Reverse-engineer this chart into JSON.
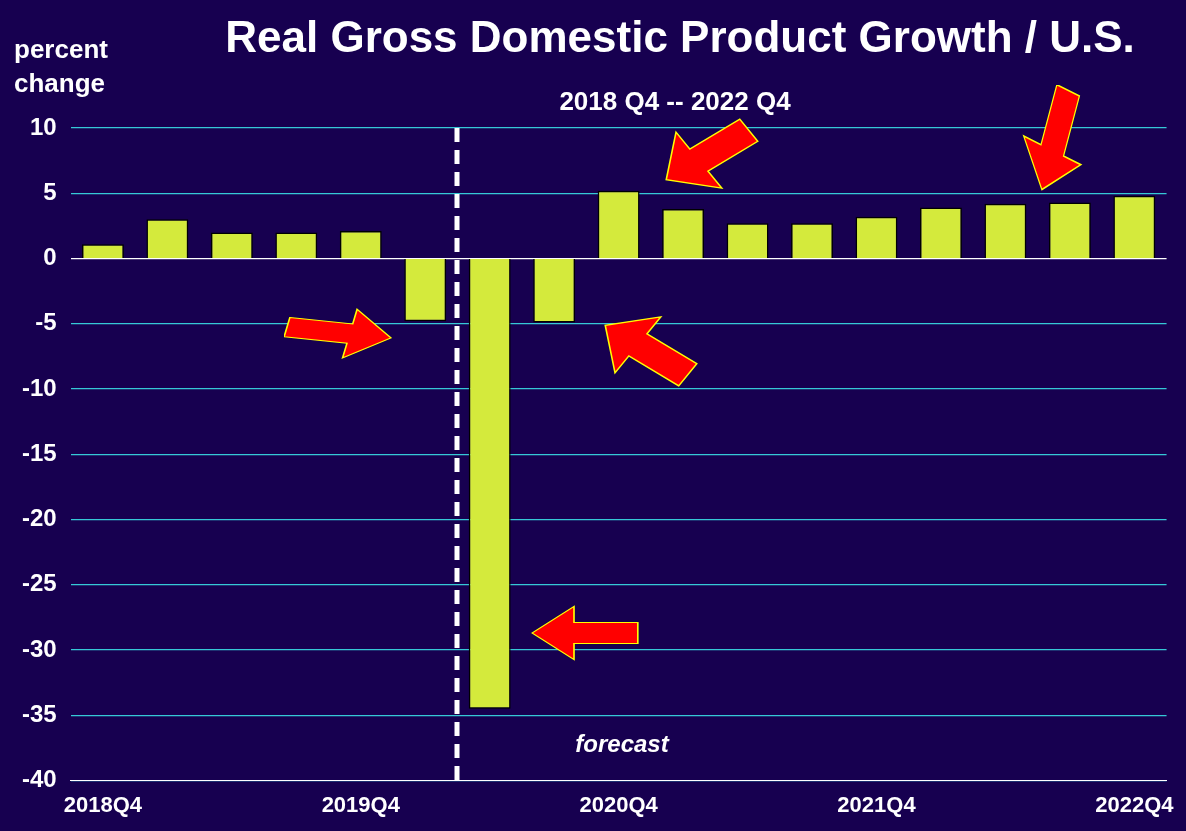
{
  "chart_data": {
    "type": "bar",
    "title": "Real Gross Domestic Product Growth / U.S.",
    "subtitle": "2018 Q4 -- 2022 Q4",
    "ylabel": "percent change",
    "categories": [
      "2018Q4",
      null,
      null,
      null,
      "2019Q4",
      null,
      null,
      null,
      "2020Q4",
      null,
      null,
      null,
      "2021Q4",
      null,
      null,
      null,
      "2022Q4"
    ],
    "values": [
      1.1,
      3.0,
      2.0,
      2.0,
      2.1,
      -4.8,
      -34.5,
      -4.9,
      5.2,
      3.8,
      2.7,
      2.7,
      3.2,
      3.9,
      4.2,
      4.3,
      4.8
    ],
    "color": "#d4ea3c",
    "ylim": [
      -40,
      10
    ],
    "yticks": [
      -40,
      -35,
      -30,
      -25,
      -20,
      -15,
      -10,
      -5,
      0,
      5,
      10
    ],
    "grid": "y",
    "annotations": [
      "forecast"
    ]
  }
}
